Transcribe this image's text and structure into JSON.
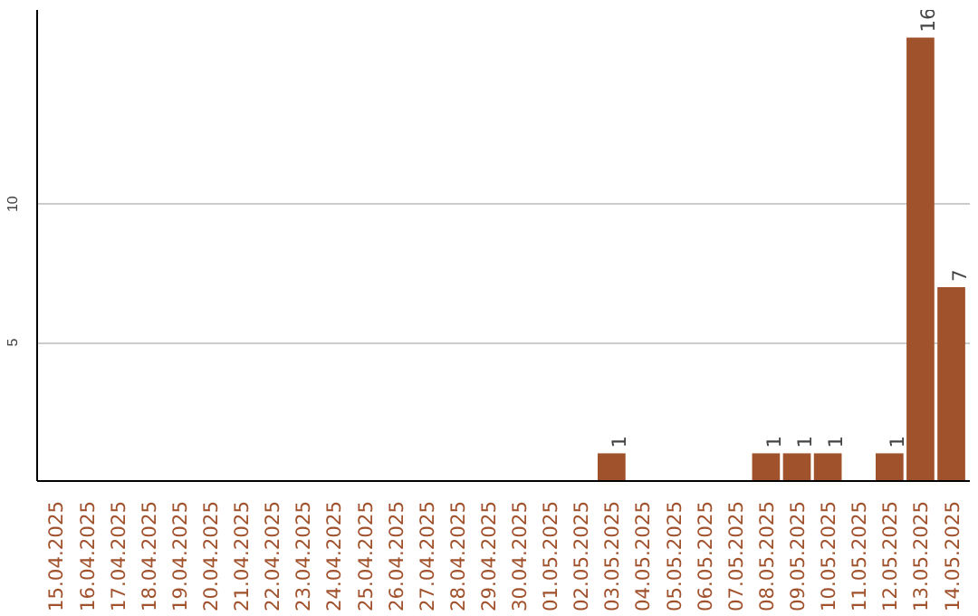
{
  "chart_data": {
    "type": "bar",
    "categories": [
      "15.04.2025",
      "16.04.2025",
      "17.04.2025",
      "18.04.2025",
      "19.04.2025",
      "20.04.2025",
      "21.04.2025",
      "22.04.2025",
      "23.04.2025",
      "24.04.2025",
      "25.04.2025",
      "26.04.2025",
      "27.04.2025",
      "28.04.2025",
      "29.04.2025",
      "30.04.2025",
      "01.05.2025",
      "02.05.2025",
      "03.05.2025",
      "04.05.2025",
      "05.05.2025",
      "06.05.2025",
      "07.05.2025",
      "08.05.2025",
      "09.05.2025",
      "10.05.2025",
      "11.05.2025",
      "12.05.2025",
      "13.05.2025",
      "14.05.2025"
    ],
    "values": [
      0,
      0,
      0,
      0,
      0,
      0,
      0,
      0,
      0,
      0,
      0,
      0,
      0,
      0,
      0,
      0,
      0,
      0,
      1,
      0,
      0,
      0,
      0,
      1,
      1,
      1,
      0,
      1,
      16,
      7
    ],
    "value_labels": [
      null,
      null,
      null,
      null,
      null,
      null,
      null,
      null,
      null,
      null,
      null,
      null,
      null,
      null,
      null,
      null,
      null,
      null,
      "1",
      null,
      null,
      null,
      null,
      "1",
      "1",
      "1",
      null,
      "1",
      "16",
      "7"
    ],
    "color": "#a0522d",
    "ylim": [
      0,
      17
    ],
    "yticks": [
      5,
      10
    ],
    "grid": "y"
  }
}
